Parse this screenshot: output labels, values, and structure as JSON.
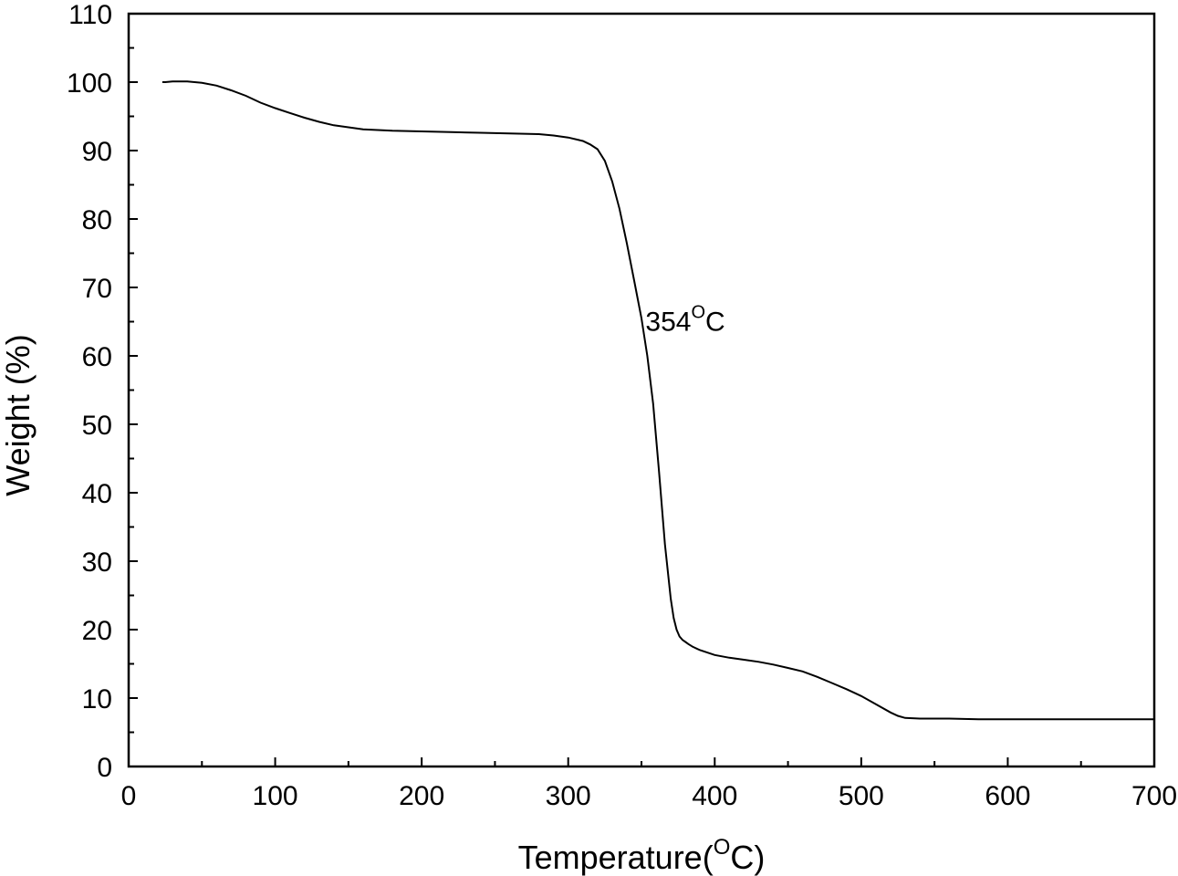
{
  "chart_data": {
    "type": "line",
    "title": "",
    "xlabel": "Temperature(",
    "xlabel_degree_sup": "O",
    "xlabel_unit": "C)",
    "ylabel": "Weight (%)",
    "xlim": [
      0,
      700
    ],
    "ylim": [
      0,
      110
    ],
    "x_ticks": [
      0,
      100,
      200,
      300,
      400,
      500,
      600,
      700
    ],
    "y_ticks": [
      0,
      10,
      20,
      30,
      40,
      50,
      60,
      70,
      80,
      90,
      100,
      110
    ],
    "x_minor_step": 50,
    "y_minor_step": 5,
    "grid": false,
    "legend": "none",
    "line_color": "#000000",
    "annotations": [
      {
        "text_main": "354",
        "text_sup": "O",
        "text_unit": "C",
        "x": 354,
        "y": 65
      }
    ],
    "series": [
      {
        "x": [
          23,
          25,
          30,
          40,
          50,
          60,
          70,
          80,
          90,
          100,
          110,
          120,
          130,
          140,
          150,
          160,
          170,
          180,
          200,
          220,
          240,
          260,
          280,
          290,
          300,
          310,
          315,
          320,
          325,
          330,
          335,
          340,
          345,
          350,
          354,
          358,
          362,
          366,
          370,
          372,
          374,
          376,
          378,
          380,
          382,
          385,
          390,
          400,
          410,
          420,
          430,
          440,
          450,
          460,
          470,
          480,
          490,
          500,
          510,
          520,
          525,
          530,
          540,
          550,
          560,
          580,
          600,
          620,
          640,
          660,
          680,
          700
        ],
        "y": [
          100,
          100,
          100.1,
          100.1,
          99.9,
          99.5,
          98.8,
          98.0,
          97.0,
          96.2,
          95.5,
          94.8,
          94.2,
          93.7,
          93.4,
          93.1,
          93.0,
          92.9,
          92.8,
          92.7,
          92.6,
          92.5,
          92.4,
          92.2,
          91.9,
          91.4,
          90.9,
          90.2,
          88.5,
          85.5,
          81.5,
          76.5,
          71.0,
          65.5,
          60.0,
          53.0,
          43.0,
          32.5,
          24.5,
          21.7,
          20.0,
          19.0,
          18.5,
          18.2,
          17.9,
          17.5,
          17.0,
          16.3,
          15.9,
          15.6,
          15.3,
          14.9,
          14.4,
          13.9,
          13.1,
          12.2,
          11.3,
          10.3,
          9.1,
          7.9,
          7.4,
          7.1,
          7.0,
          7.0,
          7.0,
          6.9,
          6.9,
          6.9,
          6.9,
          6.9,
          6.9,
          6.9
        ]
      }
    ]
  }
}
